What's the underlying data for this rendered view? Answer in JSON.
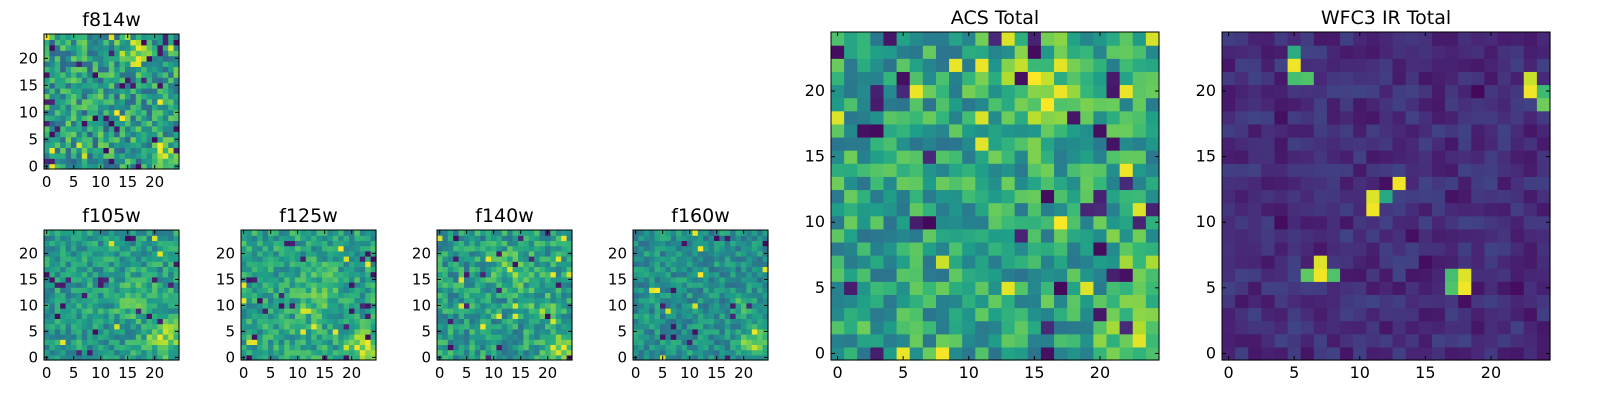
{
  "chart_data": [
    {
      "type": "heatmap",
      "title": "f814w",
      "colormap": "viridis",
      "xticks": [
        "0",
        "5",
        "10",
        "15",
        "20"
      ],
      "yticks": [
        "0",
        "5",
        "10",
        "15",
        "20"
      ],
      "xlim": [
        -0.5,
        24.5
      ],
      "ylim": [
        -0.5,
        24.5
      ],
      "grid_size": 25,
      "seed": 11,
      "base": 0.55,
      "noise": 0.24,
      "darkrate": 0.06,
      "brightrate": 0.02,
      "blobs": [
        [
          16,
          21,
          0.28,
          2.0
        ],
        [
          22,
          2,
          0.28,
          1.8
        ]
      ]
    },
    {
      "type": "heatmap",
      "title": "f105w",
      "colormap": "viridis",
      "xticks": [
        "0",
        "5",
        "10",
        "15",
        "20"
      ],
      "yticks": [
        "0",
        "5",
        "10",
        "15",
        "20"
      ],
      "xlim": [
        -0.5,
        24.5
      ],
      "ylim": [
        -0.5,
        24.5
      ],
      "grid_size": 25,
      "seed": 23,
      "base": 0.55,
      "noise": 0.16,
      "darkrate": 0.03,
      "brightrate": 0.01,
      "blobs": [
        [
          22,
          4,
          0.3,
          2.5
        ],
        [
          16,
          12,
          0.12,
          3.0
        ]
      ]
    },
    {
      "type": "heatmap",
      "title": "f125w",
      "colormap": "viridis",
      "xticks": [
        "0",
        "5",
        "10",
        "15",
        "20"
      ],
      "yticks": [
        "0",
        "5",
        "10",
        "15",
        "20"
      ],
      "xlim": [
        -0.5,
        24.5
      ],
      "ylim": [
        -0.5,
        24.5
      ],
      "grid_size": 25,
      "seed": 37,
      "base": 0.58,
      "noise": 0.16,
      "darkrate": 0.04,
      "brightrate": 0.02,
      "blobs": [
        [
          22,
          2,
          0.3,
          2.0
        ],
        [
          14,
          12,
          0.12,
          3.0
        ]
      ]
    },
    {
      "type": "heatmap",
      "title": "f140w",
      "colormap": "viridis",
      "xticks": [
        "0",
        "5",
        "10",
        "15",
        "20"
      ],
      "yticks": [
        "0",
        "5",
        "10",
        "15",
        "20"
      ],
      "xlim": [
        -0.5,
        24.5
      ],
      "ylim": [
        -0.5,
        24.5
      ],
      "grid_size": 25,
      "seed": 41,
      "base": 0.55,
      "noise": 0.18,
      "darkrate": 0.04,
      "brightrate": 0.03,
      "blobs": [
        [
          14,
          17,
          0.2,
          2.5
        ],
        [
          22,
          2,
          0.3,
          2.0
        ],
        [
          19,
          9,
          0.15,
          2.0
        ]
      ]
    },
    {
      "type": "heatmap",
      "title": "f160w",
      "colormap": "viridis",
      "xticks": [
        "0",
        "5",
        "10",
        "15",
        "20"
      ],
      "yticks": [
        "0",
        "5",
        "10",
        "15",
        "20"
      ],
      "xlim": [
        -0.5,
        24.5
      ],
      "ylim": [
        -0.5,
        24.5
      ],
      "grid_size": 25,
      "seed": 53,
      "base": 0.5,
      "noise": 0.15,
      "darkrate": 0.03,
      "brightrate": 0.02,
      "blobs": [
        [
          22,
          3,
          0.35,
          2.0
        ],
        [
          20,
          10,
          0.2,
          1.5
        ]
      ]
    },
    {
      "type": "heatmap",
      "title": "ACS Total",
      "colormap": "viridis",
      "xticks": [
        "0",
        "5",
        "10",
        "15",
        "20"
      ],
      "yticks": [
        "0",
        "5",
        "10",
        "15",
        "20"
      ],
      "xlim": [
        -0.5,
        24.5
      ],
      "ylim": [
        -0.5,
        24.5
      ],
      "grid_size": 25,
      "seed": 67,
      "base": 0.58,
      "noise": 0.2,
      "darkrate": 0.05,
      "brightrate": 0.02,
      "blobs": [
        [
          16,
          20,
          0.28,
          2.5
        ],
        [
          23,
          1,
          0.3,
          1.8
        ],
        [
          23,
          7,
          0.18,
          1.8
        ]
      ]
    },
    {
      "type": "heatmap",
      "title": "WFC3 IR Total",
      "colormap": "viridis",
      "xticks": [
        "0",
        "5",
        "10",
        "15",
        "20"
      ],
      "yticks": [
        "0",
        "5",
        "10",
        "15",
        "20"
      ],
      "xlim": [
        -0.5,
        24.5
      ],
      "ylim": [
        -0.5,
        24.5
      ],
      "grid_size": 25,
      "seed": 79,
      "base": 0.13,
      "noise": 0.07,
      "darkrate": 0.05,
      "brightrate": 0.0,
      "blobs": [],
      "hotspots": [
        [
          5,
          22,
          0.98
        ],
        [
          5,
          23,
          0.62
        ],
        [
          6,
          21,
          0.72
        ],
        [
          5,
          21,
          0.7
        ],
        [
          23,
          20,
          0.98
        ],
        [
          23,
          21,
          0.92
        ],
        [
          24,
          19,
          0.78
        ],
        [
          24,
          20,
          0.68
        ],
        [
          11,
          11,
          0.98
        ],
        [
          11,
          12,
          0.95
        ],
        [
          12,
          12,
          0.6
        ],
        [
          13,
          13,
          0.98
        ],
        [
          7,
          6,
          0.98
        ],
        [
          7,
          7,
          0.95
        ],
        [
          6,
          6,
          0.75
        ],
        [
          8,
          6,
          0.72
        ],
        [
          18,
          5,
          0.98
        ],
        [
          18,
          6,
          0.95
        ],
        [
          17,
          5,
          0.72
        ],
        [
          17,
          6,
          0.7
        ]
      ]
    }
  ]
}
